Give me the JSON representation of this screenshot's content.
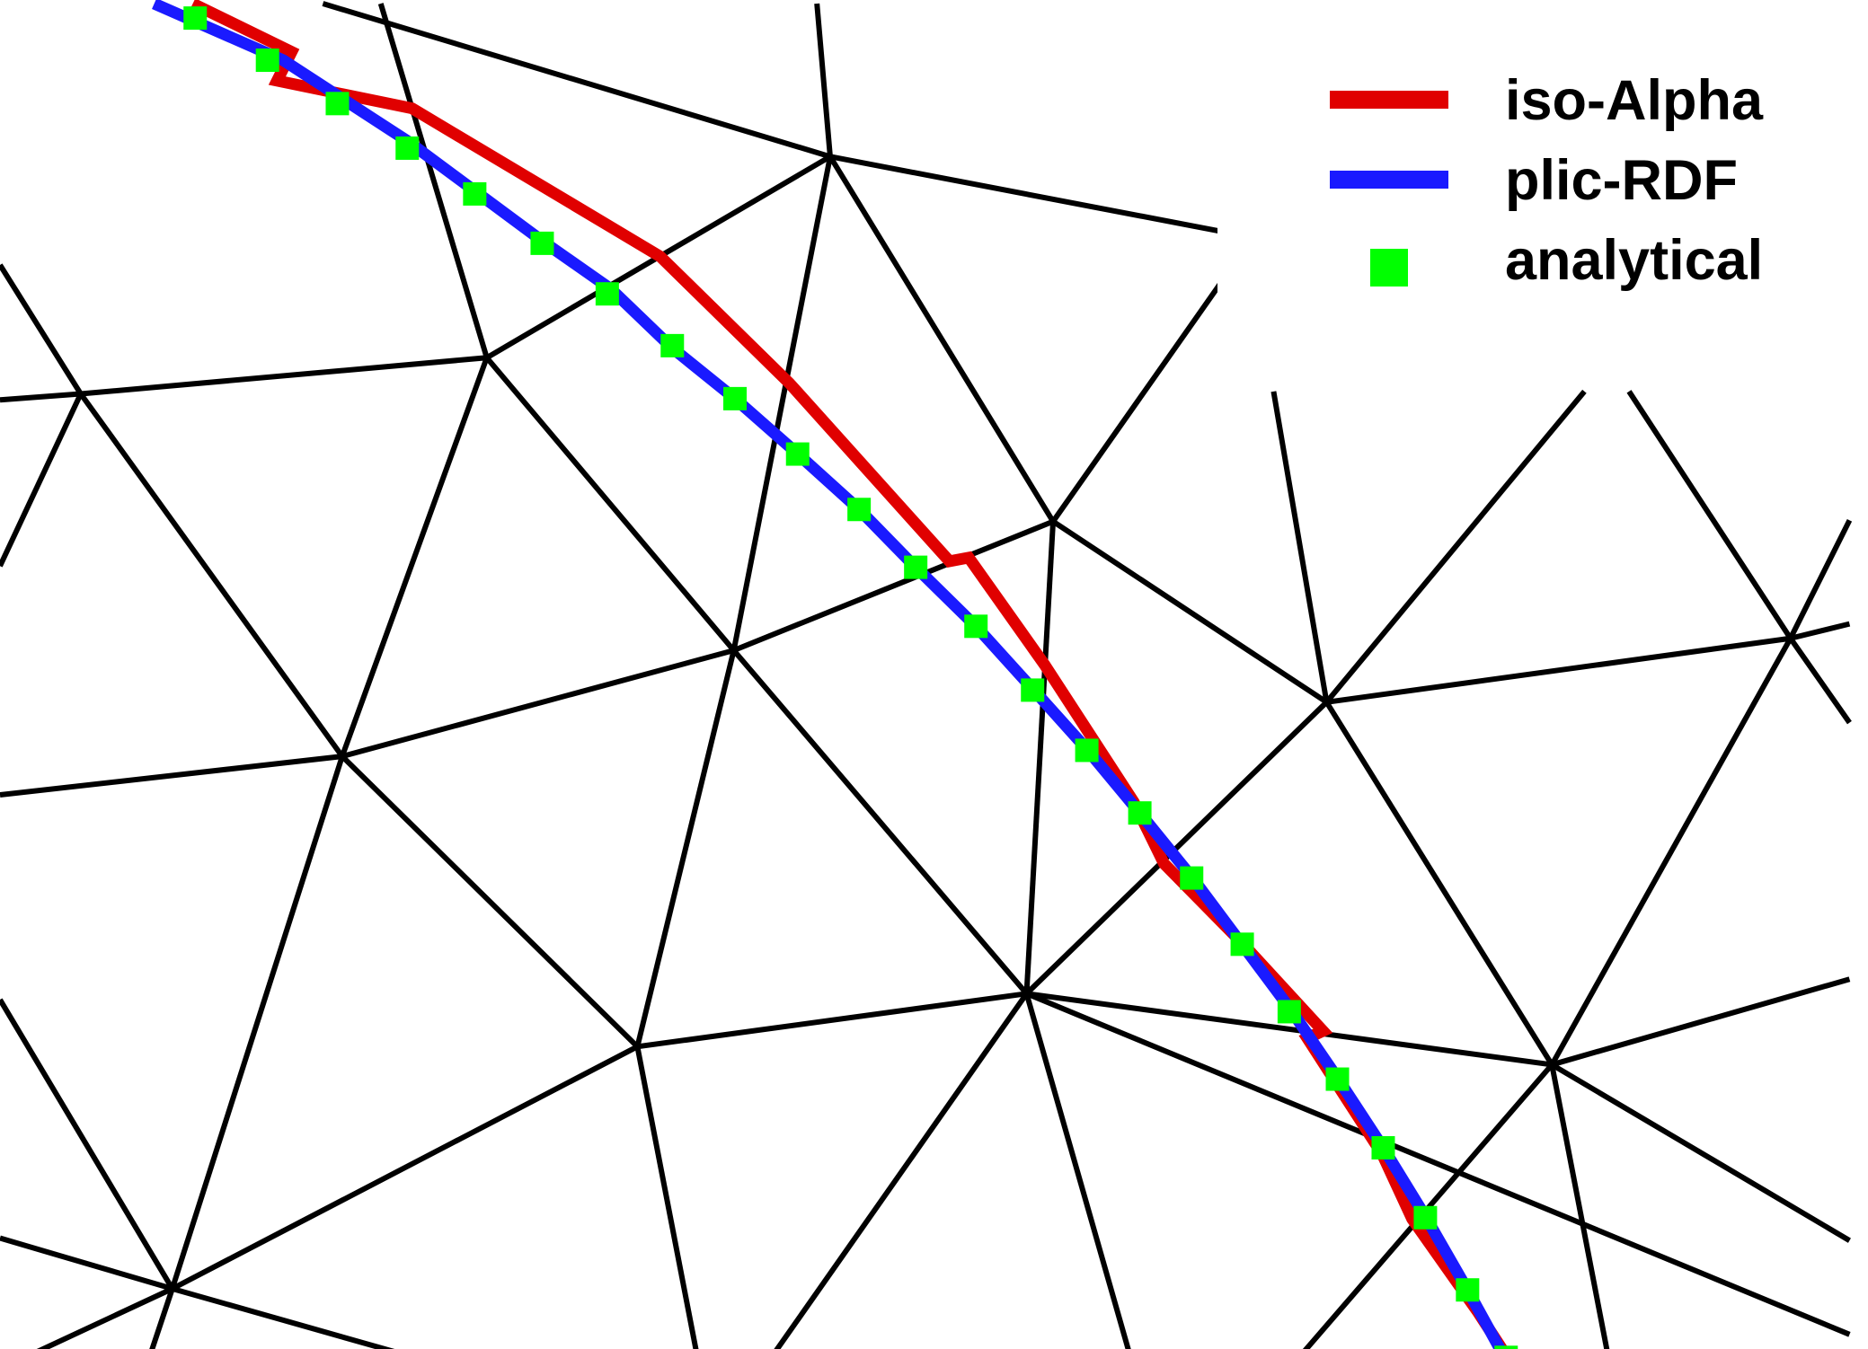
{
  "legend": {
    "iso_alpha": "iso-Alpha",
    "plic_rdf": "plic-RDF",
    "analytical": "analytical"
  },
  "colors": {
    "mesh": "#000000",
    "iso_alpha": "#e00000",
    "plic_rdf": "#1a1aff",
    "analytical": "#00ff00",
    "background": "#ffffff"
  }
}
